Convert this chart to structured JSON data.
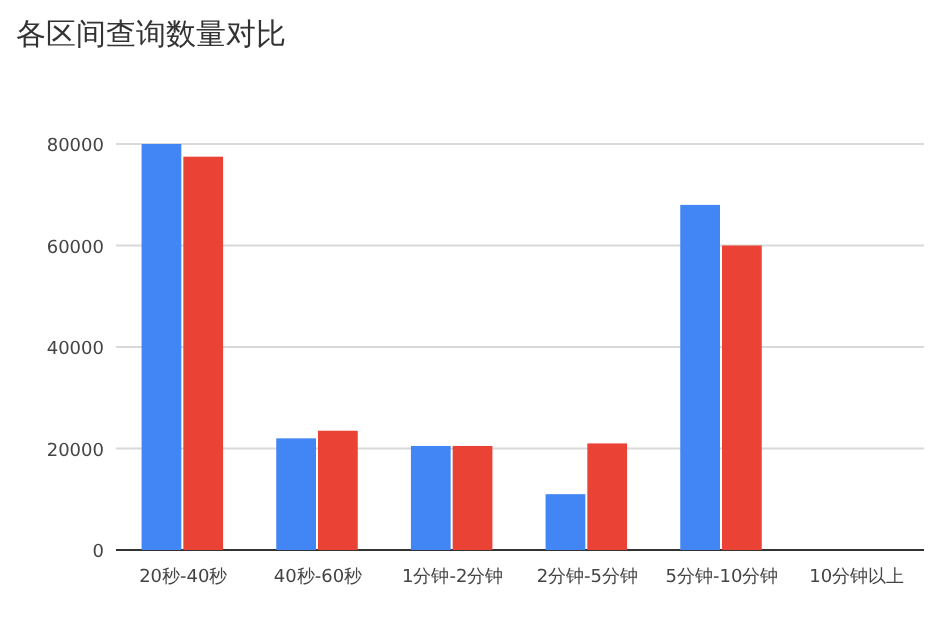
{
  "chart_data": {
    "type": "bar",
    "title": "各区间查询数量对比",
    "categories": [
      "20秒-40秒",
      "40秒-60秒",
      "1分钟-2分钟",
      "2分钟-5分钟",
      "5分钟-10分钟",
      "10分钟以上"
    ],
    "series": [
      {
        "color": "#4285f4",
        "values": [
          80000,
          22000,
          20500,
          11000,
          68000,
          0
        ]
      },
      {
        "color": "#ea4335",
        "values": [
          77500,
          23500,
          20500,
          21000,
          60000,
          0
        ]
      }
    ],
    "ylim": [
      0,
      80000
    ],
    "yticks": [
      0,
      20000,
      40000,
      60000,
      80000
    ],
    "grid": "y"
  }
}
